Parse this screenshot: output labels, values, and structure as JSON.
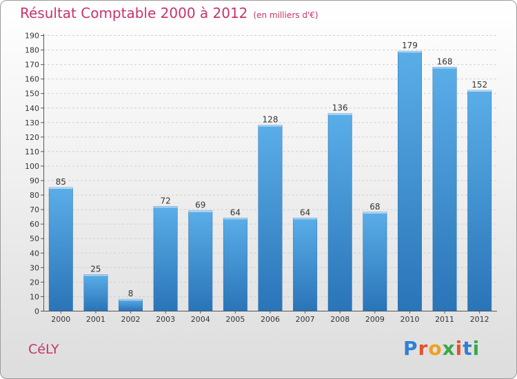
{
  "header": {
    "title": "Résultat Comptable 2000 à 2012",
    "subtitle": "(en milliers d'€)"
  },
  "footer": {
    "city": "CéLY",
    "brand": "Proxiti",
    "brand_letters": [
      "P",
      "r",
      "o",
      "x",
      "i",
      "t",
      "i"
    ],
    "brand_colors": [
      "#2f7fd6",
      "#e6522b",
      "#f0a020",
      "#3aa84a",
      "#e6522b",
      "#2f7fd6",
      "#3aa84a"
    ]
  },
  "chart_data": {
    "type": "bar",
    "title": "Résultat Comptable 2000 à 2012",
    "subtitle": "(en milliers d'€)",
    "xlabel": "",
    "ylabel": "",
    "categories": [
      "2000",
      "2001",
      "2002",
      "2003",
      "2004",
      "2005",
      "2006",
      "2007",
      "2008",
      "2009",
      "2010",
      "2011",
      "2012"
    ],
    "values": [
      85,
      25,
      8,
      72,
      69,
      64,
      128,
      64,
      136,
      68,
      179,
      168,
      152
    ],
    "ylim": [
      0,
      190
    ],
    "yticks": [
      0,
      10,
      20,
      30,
      40,
      50,
      60,
      70,
      80,
      90,
      100,
      110,
      120,
      130,
      140,
      150,
      160,
      170,
      180,
      190
    ],
    "grid": true,
    "bar_color": "#3b93dc"
  }
}
